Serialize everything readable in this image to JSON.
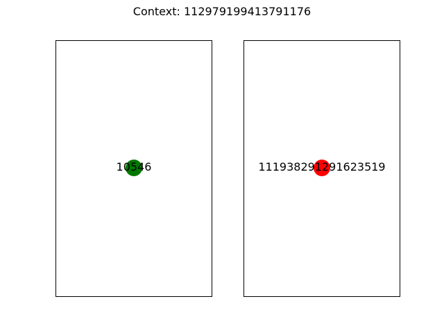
{
  "title": "Context: 112979199413791176",
  "panels": [
    {
      "label": "10546",
      "dot_color": "#007800"
    },
    {
      "label": "111938291291623519",
      "dot_color": "#ff0000"
    }
  ]
}
